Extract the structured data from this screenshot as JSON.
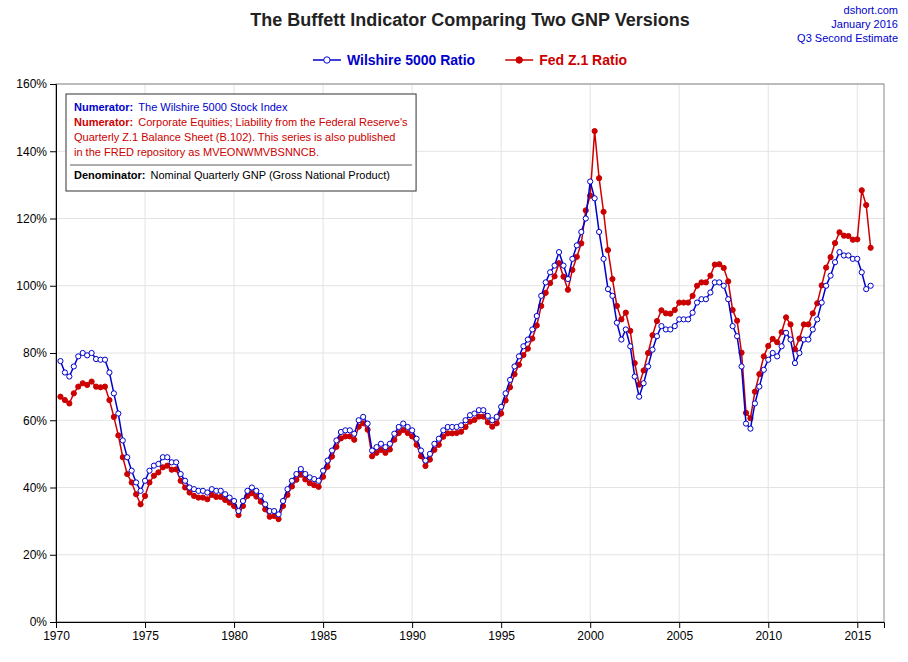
{
  "chart_data": {
    "type": "line",
    "title": "The Buffett Indicator  Comparing Two GNP Versions",
    "watermark": {
      "lines": [
        "dshort.com",
        "January 2016",
        "Q3 Second Estimate"
      ],
      "color": "#0000CC"
    },
    "x": [
      1970.25,
      1970.5,
      1970.75,
      1971,
      1971.25,
      1971.5,
      1971.75,
      1972,
      1972.25,
      1972.5,
      1972.75,
      1973,
      1973.25,
      1973.5,
      1973.75,
      1974,
      1974.25,
      1974.5,
      1974.75,
      1975,
      1975.25,
      1975.5,
      1975.75,
      1976,
      1976.25,
      1976.5,
      1976.75,
      1977,
      1977.25,
      1977.5,
      1977.75,
      1978,
      1978.25,
      1978.5,
      1978.75,
      1979,
      1979.25,
      1979.5,
      1979.75,
      1980,
      1980.25,
      1980.5,
      1980.75,
      1981,
      1981.25,
      1981.5,
      1981.75,
      1982,
      1982.25,
      1982.5,
      1982.75,
      1983,
      1983.25,
      1983.5,
      1983.75,
      1984,
      1984.25,
      1984.5,
      1984.75,
      1985,
      1985.25,
      1985.5,
      1985.75,
      1986,
      1986.25,
      1986.5,
      1986.75,
      1987,
      1987.25,
      1987.5,
      1987.75,
      1988,
      1988.25,
      1988.5,
      1988.75,
      1989,
      1989.25,
      1989.5,
      1989.75,
      1990,
      1990.25,
      1990.5,
      1990.75,
      1991,
      1991.25,
      1991.5,
      1991.75,
      1992,
      1992.25,
      1992.5,
      1992.75,
      1993,
      1993.25,
      1993.5,
      1993.75,
      1994,
      1994.25,
      1994.5,
      1994.75,
      1995,
      1995.25,
      1995.5,
      1995.75,
      1996,
      1996.25,
      1996.5,
      1996.75,
      1997,
      1997.25,
      1997.5,
      1997.75,
      1998,
      1998.25,
      1998.5,
      1998.75,
      1999,
      1999.25,
      1999.5,
      1999.75,
      2000,
      2000.25,
      2000.5,
      2000.75,
      2001,
      2001.25,
      2001.5,
      2001.75,
      2002,
      2002.25,
      2002.5,
      2002.75,
      2003,
      2003.25,
      2003.5,
      2003.75,
      2004,
      2004.25,
      2004.5,
      2004.75,
      2005,
      2005.25,
      2005.5,
      2005.75,
      2006,
      2006.25,
      2006.5,
      2006.75,
      2007,
      2007.25,
      2007.5,
      2007.75,
      2008,
      2008.25,
      2008.5,
      2008.75,
      2009,
      2009.25,
      2009.5,
      2009.75,
      2010,
      2010.25,
      2010.5,
      2010.75,
      2011,
      2011.25,
      2011.5,
      2011.75,
      2012,
      2012.25,
      2012.5,
      2012.75,
      2013,
      2013.25,
      2013.5,
      2013.75,
      2014,
      2014.25,
      2014.5,
      2014.75,
      2015,
      2015.25,
      2015.5,
      2015.75
    ],
    "series": [
      {
        "name": "Wilshire 5000 Ratio",
        "color": "#0000CC",
        "marker": "circle-open",
        "values": [
          0.776,
          0.742,
          0.73,
          0.76,
          0.79,
          0.8,
          0.793,
          0.8,
          0.782,
          0.78,
          0.78,
          0.742,
          0.68,
          0.62,
          0.54,
          0.49,
          0.45,
          0.415,
          0.39,
          0.42,
          0.45,
          0.465,
          0.47,
          0.49,
          0.49,
          0.475,
          0.475,
          0.44,
          0.42,
          0.4,
          0.395,
          0.39,
          0.39,
          0.385,
          0.395,
          0.39,
          0.39,
          0.38,
          0.37,
          0.36,
          0.33,
          0.36,
          0.39,
          0.4,
          0.39,
          0.375,
          0.35,
          0.33,
          0.33,
          0.32,
          0.36,
          0.395,
          0.42,
          0.44,
          0.455,
          0.44,
          0.43,
          0.425,
          0.42,
          0.45,
          0.48,
          0.51,
          0.54,
          0.565,
          0.57,
          0.57,
          0.56,
          0.6,
          0.61,
          0.59,
          0.51,
          0.52,
          0.53,
          0.52,
          0.53,
          0.56,
          0.58,
          0.59,
          0.58,
          0.57,
          0.545,
          0.51,
          0.48,
          0.5,
          0.53,
          0.545,
          0.57,
          0.58,
          0.58,
          0.58,
          0.585,
          0.6,
          0.615,
          0.62,
          0.63,
          0.63,
          0.613,
          0.6,
          0.61,
          0.64,
          0.68,
          0.72,
          0.76,
          0.79,
          0.82,
          0.84,
          0.87,
          0.91,
          0.97,
          1.01,
          1.04,
          1.06,
          1.1,
          1.06,
          1.02,
          1.08,
          1.12,
          1.16,
          1.2,
          1.31,
          1.26,
          1.16,
          1.08,
          0.99,
          0.97,
          0.89,
          0.84,
          0.87,
          0.82,
          0.73,
          0.67,
          0.71,
          0.76,
          0.81,
          0.85,
          0.88,
          0.87,
          0.87,
          0.88,
          0.9,
          0.9,
          0.9,
          0.92,
          0.95,
          0.96,
          0.96,
          0.98,
          1.01,
          1.01,
          1.0,
          0.96,
          0.88,
          0.85,
          0.76,
          0.59,
          0.575,
          0.65,
          0.7,
          0.75,
          0.78,
          0.8,
          0.79,
          0.82,
          0.86,
          0.84,
          0.77,
          0.8,
          0.84,
          0.84,
          0.87,
          0.9,
          0.95,
          1.0,
          1.03,
          1.07,
          1.1,
          1.09,
          1.09,
          1.08,
          1.08,
          1.04,
          0.99,
          1.0
        ]
      },
      {
        "name": "Fed Z.1 Ratio",
        "color": "#CC0000",
        "marker": "circle",
        "values": [
          0.67,
          0.66,
          0.65,
          0.68,
          0.7,
          0.71,
          0.705,
          0.715,
          0.7,
          0.698,
          0.7,
          0.66,
          0.61,
          0.555,
          0.49,
          0.44,
          0.415,
          0.38,
          0.35,
          0.375,
          0.415,
          0.435,
          0.445,
          0.46,
          0.465,
          0.453,
          0.454,
          0.42,
          0.4,
          0.385,
          0.375,
          0.37,
          0.37,
          0.365,
          0.378,
          0.372,
          0.372,
          0.363,
          0.355,
          0.345,
          0.318,
          0.345,
          0.375,
          0.383,
          0.373,
          0.358,
          0.335,
          0.313,
          0.315,
          0.306,
          0.345,
          0.378,
          0.403,
          0.423,
          0.438,
          0.424,
          0.413,
          0.407,
          0.402,
          0.432,
          0.462,
          0.492,
          0.521,
          0.546,
          0.552,
          0.552,
          0.542,
          0.581,
          0.591,
          0.572,
          0.493,
          0.503,
          0.512,
          0.503,
          0.513,
          0.542,
          0.562,
          0.571,
          0.562,
          0.552,
          0.527,
          0.493,
          0.464,
          0.483,
          0.512,
          0.527,
          0.551,
          0.561,
          0.561,
          0.562,
          0.566,
          0.58,
          0.596,
          0.601,
          0.611,
          0.611,
          0.594,
          0.581,
          0.591,
          0.62,
          0.659,
          0.698,
          0.737,
          0.765,
          0.794,
          0.813,
          0.843,
          0.882,
          0.94,
          0.979,
          1.008,
          1.028,
          1.067,
          1.027,
          0.988,
          1.047,
          1.086,
          1.126,
          1.224,
          1.268,
          1.46,
          1.32,
          1.22,
          1.106,
          1.02,
          0.94,
          0.9,
          0.92,
          0.866,
          0.77,
          0.706,
          0.748,
          0.8,
          0.853,
          0.895,
          0.927,
          0.918,
          0.917,
          0.928,
          0.95,
          0.95,
          0.95,
          0.97,
          1.0,
          1.01,
          1.01,
          1.03,
          1.063,
          1.064,
          1.053,
          1.013,
          0.928,
          0.896,
          0.801,
          0.622,
          0.606,
          0.685,
          0.737,
          0.79,
          0.821,
          0.842,
          0.832,
          0.862,
          0.906,
          0.885,
          0.811,
          0.843,
          0.885,
          0.885,
          0.918,
          0.948,
          1.001,
          1.054,
          1.085,
          1.127,
          1.159,
          1.149,
          1.148,
          1.137,
          1.138,
          1.284,
          1.24,
          1.113
        ]
      }
    ],
    "xlim": [
      1970,
      2016.5
    ],
    "xticks": [
      1970,
      1975,
      1980,
      1985,
      1990,
      1995,
      2000,
      2005,
      2010,
      2015
    ],
    "ylim": [
      0,
      1.6
    ],
    "yticks": [
      {
        "value": 0,
        "label": "0%"
      },
      {
        "value": 0.2,
        "label": "20%"
      },
      {
        "value": 0.4,
        "label": "40%"
      },
      {
        "value": 0.6,
        "label": "60%"
      },
      {
        "value": 0.8,
        "label": "80%"
      },
      {
        "value": 1.0,
        "label": "100%"
      },
      {
        "value": 1.2,
        "label": "120%"
      },
      {
        "value": 1.4,
        "label": "140%"
      },
      {
        "value": 1.6,
        "label": "160%"
      }
    ],
    "grid": true,
    "legend": "top",
    "annotations": [
      {
        "label": "Numerator:",
        "lines": [
          "The Wilshire 5000 Stock Index"
        ],
        "color": "#0000CC"
      },
      {
        "label": "Numerator:",
        "lines": [
          "Corporate Equities; Liability from the Federal Reserve's",
          "Quarterly Z.1 Balance Sheet (B.102). This series is also published",
          "in the FRED repository as MVEONWMVBSNNCB."
        ],
        "color": "#CC0000"
      },
      {
        "label": "Denominator:",
        "lines": [
          "Nominal Quarterly GNP (Gross National Product)"
        ],
        "color": "#000000"
      }
    ]
  }
}
